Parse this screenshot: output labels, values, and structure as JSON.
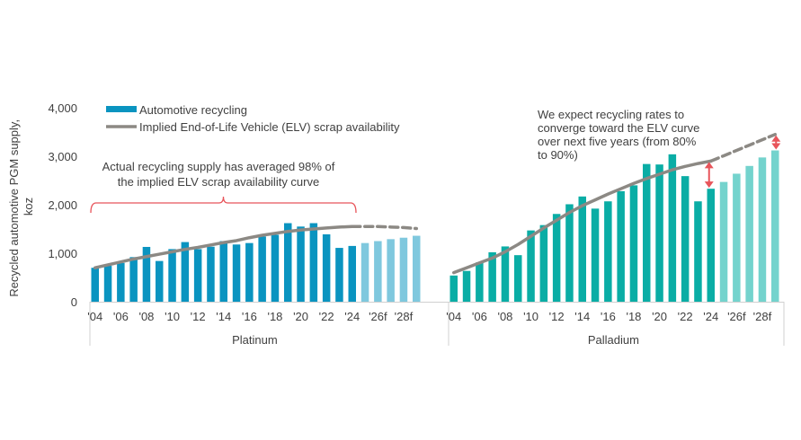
{
  "chart_data": {
    "type": "bar",
    "ylabel": "Recycled automotive PGM supply, koz",
    "ylim": [
      0,
      4000
    ],
    "yticks": [
      0,
      1000,
      2000,
      3000,
      4000
    ],
    "ytick_labels": [
      "0",
      "1,000",
      "2,000",
      "3,000",
      "4,000"
    ],
    "grid": false,
    "legend": {
      "placement": "top-left",
      "entries": [
        {
          "label": "Automotive recycling",
          "kind": "bar"
        },
        {
          "label": "Implied End-of-Life Vehicle (ELV) scrap availability",
          "kind": "line"
        }
      ]
    },
    "categories": [
      "'04",
      "'05",
      "'06",
      "'07",
      "'08",
      "'09",
      "'10",
      "'11",
      "'12",
      "'13",
      "'14",
      "'15",
      "'16",
      "'17",
      "'18",
      "'19",
      "'20",
      "'21",
      "'22",
      "'23",
      "'24",
      "'25f",
      "'26f",
      "'27f",
      "'28f",
      "'29f"
    ],
    "tick_labels": [
      "'04",
      "",
      "'06",
      "",
      "'08",
      "",
      "'10",
      "",
      "'12",
      "",
      "'14",
      "",
      "'16",
      "",
      "'18",
      "",
      "'20",
      "",
      "'22",
      "",
      "'24",
      "",
      "'26f",
      "",
      "'28f",
      ""
    ],
    "forecast_start_index": 21,
    "panels": [
      {
        "name": "Platinum",
        "colors": {
          "actual": "#0a94c0",
          "forecast": "#7fc8de"
        },
        "series": [
          {
            "name": "Automotive recycling",
            "values": [
              700,
              740,
              800,
              920,
              1130,
              840,
              1085,
              1230,
              1085,
              1135,
              1250,
              1180,
              1210,
              1345,
              1380,
              1620,
              1550,
              1620,
              1390,
              1110,
              1150,
              1210,
              1250,
              1290,
              1320,
              1360
            ]
          },
          {
            "name": "Implied End-of-Life Vehicle (ELV) scrap availability",
            "values": [
              700,
              760,
              820,
              880,
              930,
              980,
              1030,
              1080,
              1120,
              1170,
              1220,
              1260,
              1320,
              1370,
              1410,
              1450,
              1480,
              1500,
              1520,
              1540,
              1550,
              1550,
              1550,
              1540,
              1530,
              1510
            ]
          }
        ],
        "annotation": {
          "text_lines": [
            "Actual recycling supply has averaged 98% of",
            "the implied ELV scrap availability curve"
          ],
          "bracket_from": "'04",
          "bracket_to": "'24"
        }
      },
      {
        "name": "Palladium",
        "colors": {
          "actual": "#0aada5",
          "forecast": "#74d3cd"
        },
        "series": [
          {
            "name": "Automotive recycling",
            "values": [
              540,
              635,
              810,
              1020,
              1140,
              960,
              1470,
              1580,
              1810,
              2010,
              2170,
              1920,
              2070,
              2280,
              2400,
              2840,
              2830,
              3040,
              2590,
              2070,
              2330,
              2470,
              2640,
              2800,
              2975,
              3120
            ]
          },
          {
            "name": "Implied End-of-Life Vehicle (ELV) scrap availability",
            "values": [
              600,
              700,
              800,
              900,
              1030,
              1180,
              1350,
              1520,
              1680,
              1840,
              1980,
              2100,
              2220,
              2330,
              2440,
              2540,
              2630,
              2720,
              2790,
              2850,
              2900,
              3010,
              3120,
              3230,
              3340,
              3450
            ]
          }
        ],
        "annotation": {
          "text_lines": [
            "We expect recycling rates to",
            "converge toward the ELV curve",
            "over next five years (from 80%",
            "to 90%)"
          ],
          "gap_arrows_at": [
            "'24",
            "'29f"
          ],
          "recycling_rate_from_pct": 80,
          "recycling_rate_to_pct": 90
        }
      }
    ],
    "line_color": "#8c8984",
    "annotation_color": "#e8545a"
  }
}
